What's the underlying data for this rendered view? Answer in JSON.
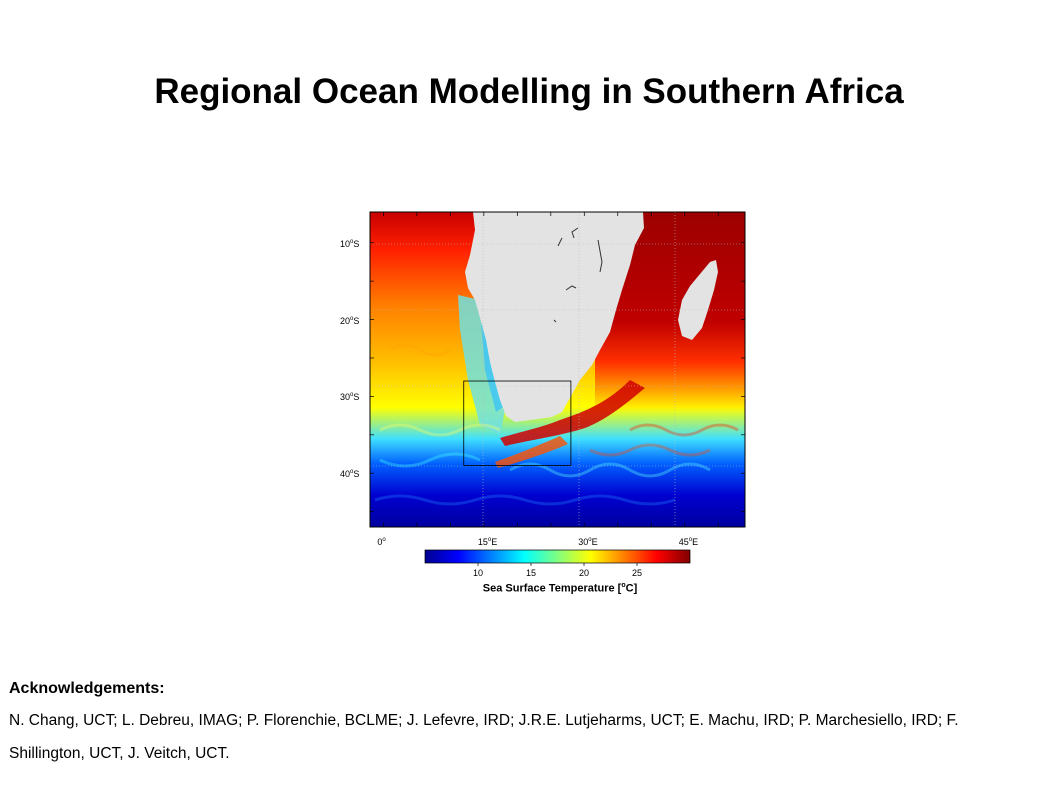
{
  "title": "Regional Ocean Modelling in Southern Africa",
  "map": {
    "lat_labels": [
      {
        "deg": "10",
        "sup": "o",
        "hemi": "S",
        "lat": -10
      },
      {
        "deg": "20",
        "sup": "o",
        "hemi": "S",
        "lat": -20
      },
      {
        "deg": "30",
        "sup": "o",
        "hemi": "S",
        "lat": -30
      },
      {
        "deg": "40",
        "sup": "o",
        "hemi": "S",
        "lat": -40
      }
    ],
    "lon_labels": [
      {
        "deg": "0",
        "sup": "o",
        "hemi": "",
        "lon": 0
      },
      {
        "deg": "15",
        "sup": "o",
        "hemi": "E",
        "lon": 15
      },
      {
        "deg": "30",
        "sup": "o",
        "hemi": "E",
        "lon": 30
      },
      {
        "deg": "45",
        "sup": "o",
        "hemi": "E",
        "lon": 45
      }
    ],
    "extent": {
      "lon_min": -2,
      "lon_max": 54,
      "lat_min": -47,
      "lat_max": -6
    },
    "subdomain_box": {
      "lon_min": 12,
      "lon_max": 28,
      "lat_min": -39,
      "lat_max": -28
    },
    "colors": {
      "land": "#e3e3e3",
      "ocean_cold": "#0000a0",
      "ocean_warm": "#8c0000"
    }
  },
  "colorbar": {
    "min": 5,
    "max": 30,
    "ticks": [
      "10",
      "15",
      "20",
      "25"
    ],
    "tick_values": [
      10,
      15,
      20,
      25
    ],
    "label_pre": "Sea Surface Temperature  [",
    "label_sup": "o",
    "label_post": "C]",
    "stops": [
      "#00008f",
      "#0000ff",
      "#0080ff",
      "#00ffff",
      "#80ff80",
      "#ffff00",
      "#ff8000",
      "#ff0000",
      "#800000"
    ]
  },
  "acknowledgements": {
    "heading": "Acknowledgements:",
    "text": "N. Chang, UCT; L. Debreu, IMAG; P. Florenchie, BCLME; J. Lefevre, IRD; J.R.E. Lutjeharms, UCT; E. Machu, IRD;  P. Marchesiello, IRD; F. Shillington, UCT, J. Veitch, UCT."
  }
}
